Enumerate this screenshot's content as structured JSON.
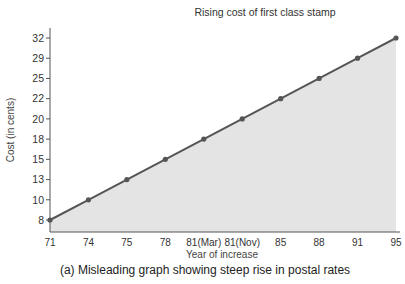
{
  "chart_data": {
    "type": "area",
    "title": "Rising cost of first class stamp",
    "x_label": "Year of increase",
    "y_label": "Cost (in cents)",
    "caption": "(a) Misleading graph showing steep rise in postal rates",
    "categories": [
      "71",
      "74",
      "75",
      "78",
      "81(Mar)",
      "81(Nov)",
      "85",
      "88",
      "91",
      "95"
    ],
    "values": [
      8,
      10,
      13,
      15,
      18,
      20,
      22,
      25,
      29,
      32
    ],
    "color": "#555555",
    "marker": "circle",
    "ylim": [
      8,
      32
    ],
    "yticks": [
      8,
      10,
      13,
      15,
      18,
      20,
      22,
      25,
      29,
      32
    ]
  }
}
